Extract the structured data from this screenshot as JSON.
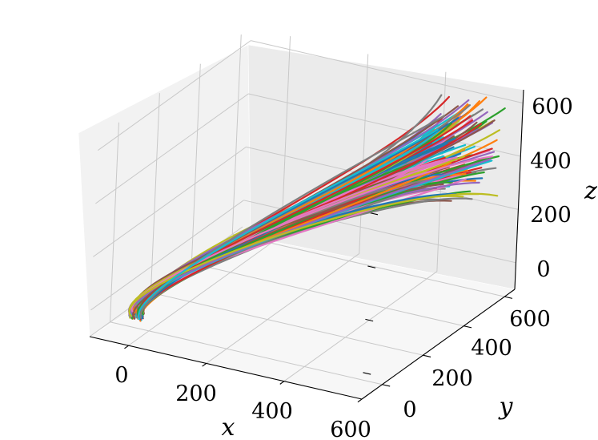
{
  "chart_data": {
    "type": "line3d",
    "title": "",
    "xlabel": "x",
    "ylabel": "y",
    "zlabel": "z",
    "xticks": [
      "0",
      "200",
      "400",
      "600"
    ],
    "yticks": [
      "0",
      "200",
      "400",
      "600"
    ],
    "zticks": [
      "0",
      "200",
      "400",
      "600"
    ],
    "xlim": [
      -100,
      600
    ],
    "ylim": [
      -100,
      650
    ],
    "zlim": [
      -100,
      650
    ],
    "grid": true,
    "legend": "none",
    "n_series": 120,
    "colors": [
      "#1f77b4",
      "#ff7f0e",
      "#2ca02c",
      "#d62728",
      "#9467bd",
      "#8c564b",
      "#e377c2",
      "#7f7f7f",
      "#bcbd22",
      "#17becf"
    ],
    "series_shape": "trajectories start near (x≈0, y≈-80, z≈0), sweep left and upward through (x≈-50, y≈200, z≈250), then run toward high y with z rising to ≈300–600"
  }
}
